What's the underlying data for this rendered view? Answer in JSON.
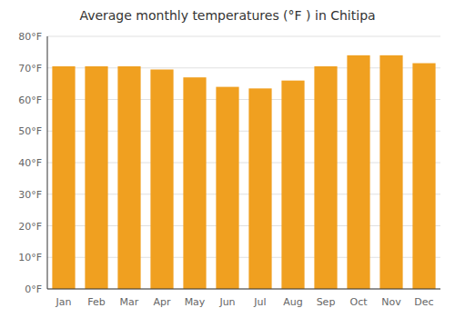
{
  "chart_data": {
    "type": "bar",
    "title": "Average monthly temperatures (°F ) in Chitipa",
    "categories": [
      "Jan",
      "Feb",
      "Mar",
      "Apr",
      "May",
      "Jun",
      "Jul",
      "Aug",
      "Sep",
      "Oct",
      "Nov",
      "Dec"
    ],
    "values": [
      70.5,
      70.5,
      70.5,
      69.5,
      67.0,
      64.0,
      63.5,
      66.0,
      70.5,
      74.0,
      74.0,
      71.5
    ],
    "color": "#F0A020",
    "ylim": [
      0,
      80
    ],
    "yticks": [
      {
        "value": 0,
        "label": "0°F"
      },
      {
        "value": 10,
        "label": "10°F"
      },
      {
        "value": 20,
        "label": "20°F"
      },
      {
        "value": 30,
        "label": "30°F"
      },
      {
        "value": 40,
        "label": "40°F"
      },
      {
        "value": 50,
        "label": "50°F"
      },
      {
        "value": 60,
        "label": "60°F"
      },
      {
        "value": 70,
        "label": "70°F"
      },
      {
        "value": 80,
        "label": "80°F"
      }
    ],
    "grid": true
  }
}
